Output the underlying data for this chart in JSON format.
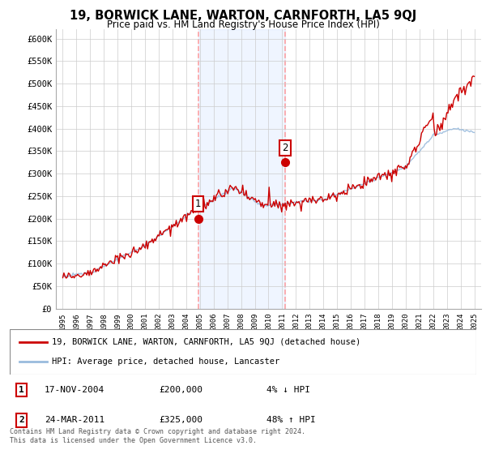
{
  "title": "19, BORWICK LANE, WARTON, CARNFORTH, LA5 9QJ",
  "subtitle": "Price paid vs. HM Land Registry's House Price Index (HPI)",
  "background_color": "#ffffff",
  "plot_bg_color": "#ffffff",
  "grid_color": "#cccccc",
  "sale1_date_x": 2004.88,
  "sale1_price": 200000,
  "sale2_date_x": 2011.22,
  "sale2_price": 325000,
  "vline_color": "#ff9999",
  "highlight_rect_color": "#ddeeff",
  "ylim": [
    0,
    620000
  ],
  "yticks": [
    0,
    50000,
    100000,
    150000,
    200000,
    250000,
    300000,
    350000,
    400000,
    450000,
    500000,
    550000,
    600000
  ],
  "ytick_labels": [
    "£0",
    "£50K",
    "£100K",
    "£150K",
    "£200K",
    "£250K",
    "£300K",
    "£350K",
    "£400K",
    "£450K",
    "£500K",
    "£550K",
    "£600K"
  ],
  "xlim": [
    1994.5,
    2025.5
  ],
  "house_line_color": "#cc0000",
  "hpi_line_color": "#99bbdd",
  "legend_house": "19, BORWICK LANE, WARTON, CARNFORTH, LA5 9QJ (detached house)",
  "legend_hpi": "HPI: Average price, detached house, Lancaster",
  "table_row1": [
    "1",
    "17-NOV-2004",
    "£200,000",
    "4% ↓ HPI"
  ],
  "table_row2": [
    "2",
    "24-MAR-2011",
    "£325,000",
    "48% ↑ HPI"
  ],
  "footer": "Contains HM Land Registry data © Crown copyright and database right 2024.\nThis data is licensed under the Open Government Licence v3.0."
}
